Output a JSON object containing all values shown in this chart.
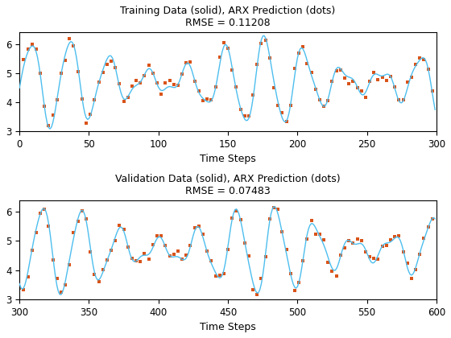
{
  "title1": "Training Data (solid), ARX Prediction (dots)\nRMSE = 0.11208",
  "title2": "Validation Data (solid), ARX Prediction (dots)\nRMSE = 0.07483",
  "xlabel": "Time Steps",
  "xlim1": [
    0,
    300
  ],
  "xlim2": [
    300,
    600
  ],
  "ylim": [
    3.0,
    6.4
  ],
  "yticks": [
    3,
    4,
    5,
    6
  ],
  "xticks1": [
    0,
    50,
    100,
    150,
    200,
    250,
    300
  ],
  "xticks2": [
    300,
    350,
    400,
    450,
    500,
    550,
    600
  ],
  "solid_color": "#4DBEEE",
  "dot_color": "#D95319",
  "n_total": 600,
  "seed": 0,
  "dot_size": 3,
  "line_width": 1.0,
  "title_fontsize": 9,
  "label_fontsize": 9,
  "tick_fontsize": 8.5,
  "figsize": [
    5.6,
    4.2
  ],
  "dpi": 100
}
